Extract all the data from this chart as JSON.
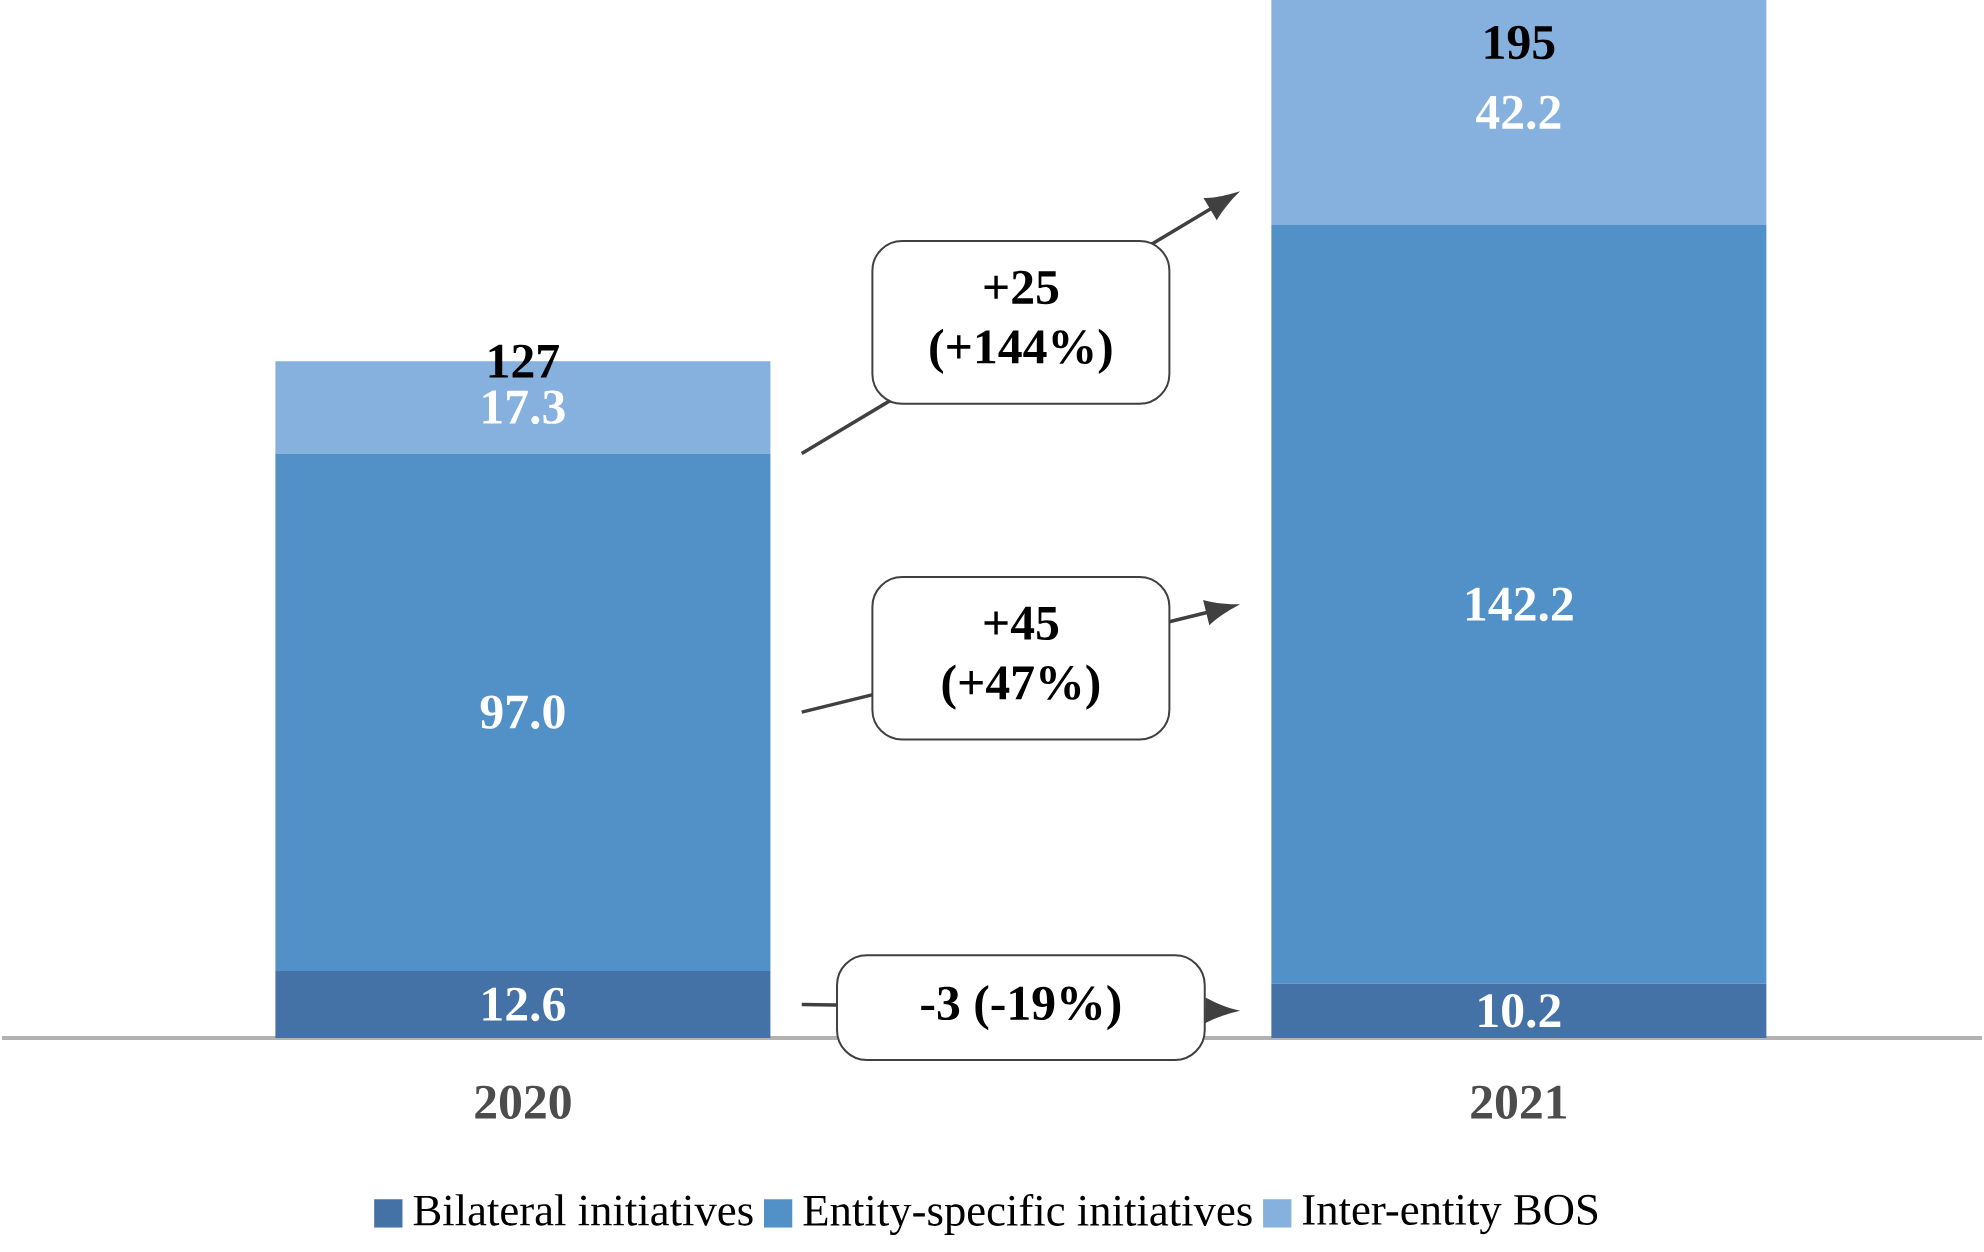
{
  "chart_data": {
    "type": "bar",
    "stacked": true,
    "legend": "bottom",
    "categories": [
      "2020",
      "2021"
    ],
    "series": [
      {
        "name": "Bilateral initiatives",
        "color": "#4472a6",
        "values": [
          12.6,
          10.2
        ],
        "value_labels": [
          "12.6",
          "10.2"
        ]
      },
      {
        "name": "Entity-specific initiatives",
        "color": "#5290c8",
        "values": [
          97.0,
          142.2
        ],
        "value_labels": [
          "97.0",
          "142.2"
        ]
      },
      {
        "name": "Inter-entity BOS",
        "color": "#86b1de",
        "values": [
          17.3,
          42.2
        ],
        "value_labels": [
          "17.3",
          "42.2"
        ]
      }
    ],
    "totals": [
      "127",
      "195"
    ],
    "annotations": [
      "+25 (+144%)",
      "+45 (+47%)",
      "-3 (-19%)"
    ]
  }
}
